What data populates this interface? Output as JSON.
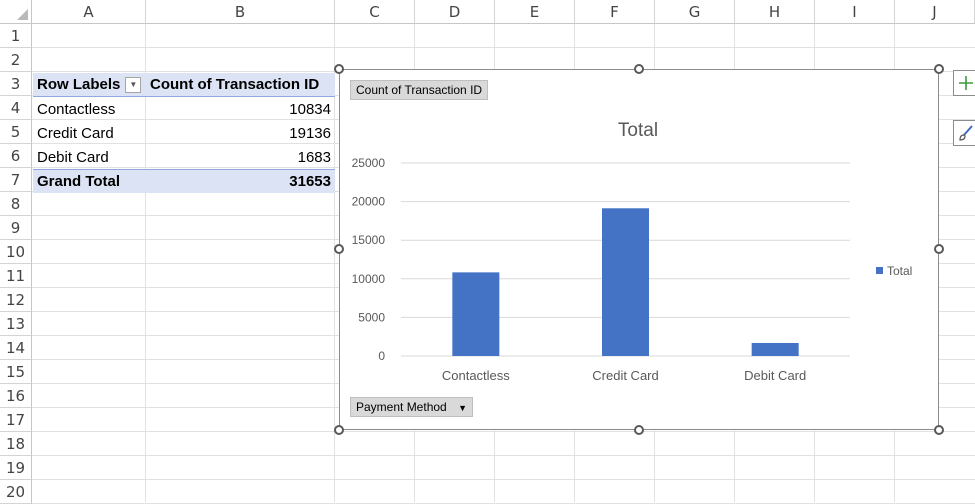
{
  "columns": [
    "A",
    "B",
    "C",
    "D",
    "E",
    "F",
    "G",
    "H",
    "I",
    "J"
  ],
  "rows": [
    "1",
    "2",
    "3",
    "4",
    "5",
    "6",
    "7",
    "8",
    "9",
    "10",
    "11",
    "12",
    "13",
    "14",
    "15",
    "16",
    "17",
    "18",
    "19",
    "20"
  ],
  "pivot": {
    "header_row_labels": "Row Labels",
    "header_value": "Count of Transaction ID",
    "rows": [
      {
        "label": "Contactless",
        "value": "10834"
      },
      {
        "label": "Credit Card",
        "value": "19136"
      },
      {
        "label": "Debit Card",
        "value": "1683"
      }
    ],
    "grand_total_label": "Grand Total",
    "grand_total_value": "31653"
  },
  "chart_ui": {
    "value_field_button": "Count of Transaction ID",
    "axis_field_button": "Payment Method",
    "add_element_icon": "plus-icon",
    "style_icon": "brush-icon"
  },
  "chart_data": {
    "type": "bar",
    "title": "Total",
    "categories": [
      "Contactless",
      "Credit Card",
      "Debit Card"
    ],
    "series": [
      {
        "name": "Total",
        "values": [
          10834,
          19136,
          1683
        ],
        "color": "#4472c4"
      }
    ],
    "ylim": [
      0,
      25000
    ],
    "yticks": [
      "0",
      "5000",
      "10000",
      "15000",
      "20000",
      "25000"
    ],
    "grid": true,
    "legend": "right"
  }
}
